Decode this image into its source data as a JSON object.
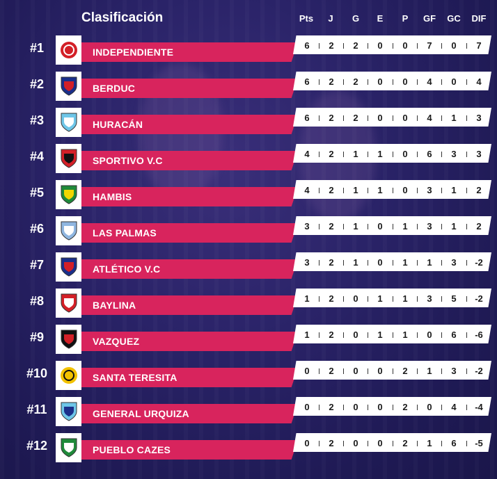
{
  "title": "Clasificación",
  "headers": [
    "Pts",
    "J",
    "G",
    "E",
    "P",
    "GF",
    "GC",
    "DIF"
  ],
  "rows": [
    {
      "rank": "#1",
      "team": "INDEPENDIENTE",
      "stats": [
        "6",
        "2",
        "2",
        "0",
        "0",
        "7",
        "0",
        "7"
      ],
      "crest": {
        "shape": "circle",
        "primary": "#d32027",
        "secondary": "#ffffff"
      }
    },
    {
      "rank": "#2",
      "team": "BERDUC",
      "stats": [
        "6",
        "2",
        "2",
        "0",
        "0",
        "4",
        "0",
        "4"
      ],
      "crest": {
        "shape": "shield",
        "primary": "#1a2f8a",
        "secondary": "#d32027"
      }
    },
    {
      "rank": "#3",
      "team": "HURACÁN",
      "stats": [
        "6",
        "2",
        "2",
        "0",
        "0",
        "4",
        "1",
        "3"
      ],
      "crest": {
        "shape": "shield",
        "primary": "#6ec6e8",
        "secondary": "#ffffff"
      }
    },
    {
      "rank": "#4",
      "team": "SPORTIVO V.C",
      "stats": [
        "4",
        "2",
        "1",
        "1",
        "0",
        "6",
        "3",
        "3"
      ],
      "crest": {
        "shape": "shield",
        "primary": "#d32027",
        "secondary": "#111111"
      }
    },
    {
      "rank": "#5",
      "team": "HAMBIS",
      "stats": [
        "4",
        "2",
        "1",
        "1",
        "0",
        "3",
        "1",
        "2"
      ],
      "crest": {
        "shape": "shield",
        "primary": "#1f8a3a",
        "secondary": "#f2d600"
      }
    },
    {
      "rank": "#6",
      "team": "LAS PALMAS",
      "stats": [
        "3",
        "2",
        "1",
        "0",
        "1",
        "3",
        "1",
        "2"
      ],
      "crest": {
        "shape": "shield",
        "primary": "#8fb6e0",
        "secondary": "#ffffff"
      }
    },
    {
      "rank": "#7",
      "team": "ATLÉTICO V.C",
      "stats": [
        "3",
        "2",
        "1",
        "0",
        "1",
        "1",
        "3",
        "-2"
      ],
      "crest": {
        "shape": "shield",
        "primary": "#1a2f8a",
        "secondary": "#d32027"
      }
    },
    {
      "rank": "#8",
      "team": "BAYLINA",
      "stats": [
        "1",
        "2",
        "0",
        "1",
        "1",
        "3",
        "5",
        "-2"
      ],
      "crest": {
        "shape": "shield",
        "primary": "#d32027",
        "secondary": "#ffffff"
      }
    },
    {
      "rank": "#9",
      "team": "VAZQUEZ",
      "stats": [
        "1",
        "2",
        "0",
        "1",
        "1",
        "0",
        "6",
        "-6"
      ],
      "crest": {
        "shape": "shield",
        "primary": "#111111",
        "secondary": "#d32027"
      }
    },
    {
      "rank": "#10",
      "team": "SANTA TERESITA",
      "stats": [
        "0",
        "2",
        "0",
        "0",
        "2",
        "1",
        "3",
        "-2"
      ],
      "crest": {
        "shape": "circle",
        "primary": "#f2c200",
        "secondary": "#111111"
      }
    },
    {
      "rank": "#11",
      "team": "GENERAL URQUIZA",
      "stats": [
        "0",
        "2",
        "0",
        "0",
        "2",
        "0",
        "4",
        "-4"
      ],
      "crest": {
        "shape": "shield",
        "primary": "#6ec6e8",
        "secondary": "#1a2f8a"
      }
    },
    {
      "rank": "#12",
      "team": "PUEBLO CAZES",
      "stats": [
        "0",
        "2",
        "0",
        "0",
        "2",
        "1",
        "6",
        "-5"
      ],
      "crest": {
        "shape": "shield",
        "primary": "#1f8a3a",
        "secondary": "#ffffff"
      }
    }
  ],
  "colors": {
    "bar": "#d8245d",
    "background": "#2a2368",
    "panel": "#ffffff"
  }
}
